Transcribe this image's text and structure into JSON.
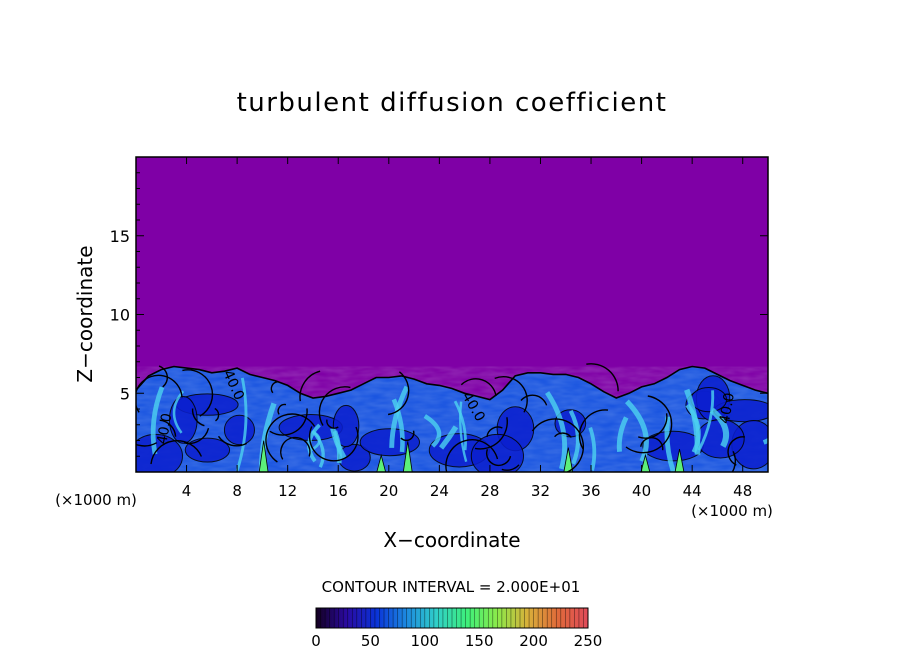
{
  "chart_data": {
    "type": "heatmap",
    "title": "turbulent diffusion coefficient",
    "xlabel": "X−coordinate",
    "ylabel": "Z−coordinate",
    "x_unit_left": "(×1000 m)",
    "x_unit_right": "(×1000 m)",
    "xlim": [
      0,
      50
    ],
    "ylim": [
      0,
      20
    ],
    "x_ticks": [
      4,
      8,
      12,
      16,
      20,
      24,
      28,
      32,
      36,
      40,
      44,
      48
    ],
    "y_ticks": [
      5,
      10,
      15
    ],
    "contour_interval_text": "CONTOUR INTERVAL = 2.000E+01",
    "contour_labels": [
      {
        "text": "40.0",
        "x": 2.6,
        "y": 2.7,
        "angle": -80
      },
      {
        "text": "40.0",
        "x": 7.4,
        "y": 5.4,
        "angle": 65
      },
      {
        "text": "40.0",
        "x": 26.4,
        "y": 4.0,
        "angle": 60
      },
      {
        "text": "40.0",
        "x": 47.1,
        "y": 4.0,
        "angle": -80
      }
    ],
    "boundary_layer_top": [
      [
        0,
        5.2
      ],
      [
        1,
        6.1
      ],
      [
        2,
        6.5
      ],
      [
        3,
        6.7
      ],
      [
        4,
        6.6
      ],
      [
        5,
        6.5
      ],
      [
        6,
        6.3
      ],
      [
        7,
        6.4
      ],
      [
        8,
        6.6
      ],
      [
        9,
        6.2
      ],
      [
        10,
        6.0
      ],
      [
        11,
        5.8
      ],
      [
        12,
        5.5
      ],
      [
        13,
        5.0
      ],
      [
        14,
        4.7
      ],
      [
        15,
        4.8
      ],
      [
        16,
        5.0
      ],
      [
        17,
        5.2
      ],
      [
        18,
        5.6
      ],
      [
        19,
        6.0
      ],
      [
        20,
        6.0
      ],
      [
        21,
        6.1
      ],
      [
        22,
        5.9
      ],
      [
        23,
        5.6
      ],
      [
        24,
        5.5
      ],
      [
        25,
        5.3
      ],
      [
        26,
        5.0
      ],
      [
        27,
        4.8
      ],
      [
        28,
        4.6
      ],
      [
        29,
        5.2
      ],
      [
        30,
        6.1
      ],
      [
        31,
        6.3
      ],
      [
        32,
        6.3
      ],
      [
        33,
        6.2
      ],
      [
        34,
        6.2
      ],
      [
        35,
        6.0
      ],
      [
        36,
        5.6
      ],
      [
        37,
        5.1
      ],
      [
        38,
        4.7
      ],
      [
        39,
        5.0
      ],
      [
        40,
        5.4
      ],
      [
        41,
        5.6
      ],
      [
        42,
        6.0
      ],
      [
        43,
        6.5
      ],
      [
        44,
        6.7
      ],
      [
        45,
        6.6
      ],
      [
        46,
        6.2
      ],
      [
        47,
        5.8
      ],
      [
        48,
        5.5
      ],
      [
        49,
        5.2
      ],
      [
        50,
        5.0
      ]
    ],
    "colorbar": {
      "min": 0,
      "max": 250,
      "tick_labels": [
        "0",
        "50",
        "100",
        "150",
        "200",
        "250"
      ],
      "colors": [
        "#140020",
        "#2a0aa0",
        "#0a33d8",
        "#1d8ae0",
        "#30d0c8",
        "#3ef07a",
        "#8cea4a",
        "#d8b03a",
        "#e06a3a",
        "#e04a5a"
      ]
    },
    "background_color": "#7f00a6",
    "grid": false
  }
}
